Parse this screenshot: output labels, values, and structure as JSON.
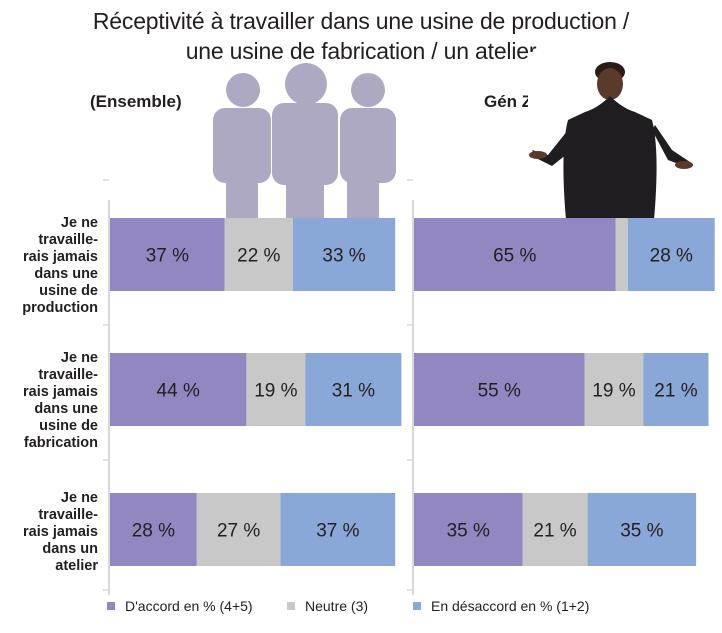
{
  "title_line1": "Réceptivité à travailler dans une usine de production /",
  "title_line2": "une usine de fabrication / un atelier",
  "colors": {
    "agree": "#9387c2",
    "neutral": "#c8c8c8",
    "disagree": "#89a7d7",
    "people_icon": "#aea9c2",
    "axis": "#d8d8d8"
  },
  "chart_data": {
    "type": "bar",
    "orientation": "horizontal-stacked",
    "title": "Réceptivité à travailler dans une usine de production / une usine de fabrication / un atelier",
    "categories": [
      "Je ne travaillerais jamais dans une usine de production",
      "Je ne travaillerais jamais dans une usine de fabrication",
      "Je ne travaillerais jamais dans un atelier"
    ],
    "category_label_lines": [
      [
        "Je ne",
        "travaille-",
        "rais jamais",
        "dans une",
        "usine de",
        "production"
      ],
      [
        "Je ne",
        "travaille-",
        "rais jamais",
        "dans une",
        "usine de",
        "fabrication"
      ],
      [
        "Je ne",
        "travaille-",
        "rais jamais",
        "dans un",
        "atelier"
      ]
    ],
    "panels": [
      {
        "name": "(Ensemble)",
        "series": [
          {
            "name": "D'accord en % (4+5)",
            "values": [
              37,
              44,
              28
            ],
            "labels": [
              "37 %",
              "44 %",
              "28 %"
            ]
          },
          {
            "name": "Neutre (3)",
            "values": [
              22,
              19,
              27
            ],
            "labels": [
              "22 %",
              "19 %",
              "27 %"
            ]
          },
          {
            "name": "En désaccord en % (1+2)",
            "values": [
              33,
              31,
              37
            ],
            "labels": [
              "33 %",
              "31 %",
              "37 %"
            ]
          }
        ]
      },
      {
        "name": "Gén Z",
        "series": [
          {
            "name": "D'accord en % (4+5)",
            "values": [
              65,
              55,
              35
            ],
            "labels": [
              "65 %",
              "55 %",
              "35 %"
            ]
          },
          {
            "name": "Neutre (3)",
            "values": [
              4,
              19,
              21
            ],
            "labels": [
              "",
              "19 %",
              "21 %"
            ]
          },
          {
            "name": "En désaccord en % (1+2)",
            "values": [
              28,
              21,
              35
            ],
            "labels": [
              "28 %",
              "21 %",
              "35 %"
            ]
          }
        ]
      }
    ],
    "xlim": [
      0,
      100
    ],
    "legend": {
      "position": "bottom",
      "entries": [
        "D'accord en % (4+5)",
        "Neutre (3)",
        "En désaccord en % (1+2)"
      ]
    },
    "grid": false
  },
  "legend": {
    "agree": "D'accord en % (4+5)",
    "neutral": "Neutre (3)",
    "disagree": "En désaccord en % (1+2)"
  }
}
